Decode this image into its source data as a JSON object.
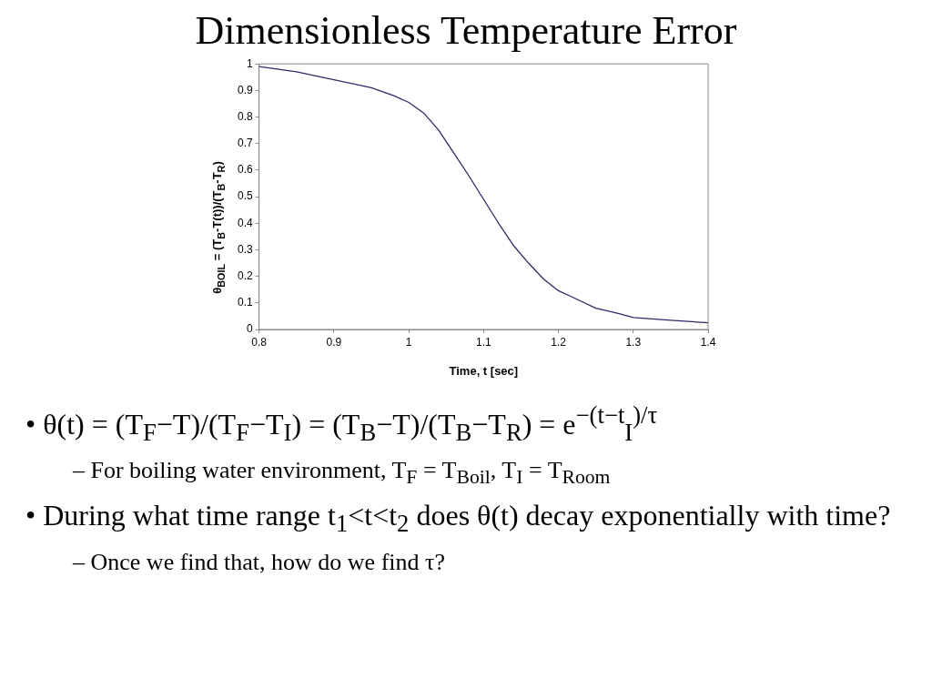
{
  "chart_data": {
    "type": "line",
    "title": "Dimensionless Temperature Error",
    "xlabel": "Time, t [sec]",
    "ylabel": "θ$_{BOIL}$ = (T$_{B}$-T(t))/(T$_{B}$-T$_{R}$)",
    "x": [
      0.8,
      0.85,
      0.9,
      0.95,
      0.98,
      1.0,
      1.02,
      1.04,
      1.06,
      1.08,
      1.1,
      1.12,
      1.14,
      1.16,
      1.18,
      1.2,
      1.22,
      1.25,
      1.28,
      1.3,
      1.35,
      1.4
    ],
    "series": [
      {
        "color": "#2b2b6b",
        "values": [
          0.99,
          0.97,
          0.94,
          0.91,
          0.88,
          0.855,
          0.815,
          0.75,
          0.665,
          0.58,
          0.49,
          0.4,
          0.316,
          0.25,
          0.19,
          0.146,
          0.12,
          0.08,
          0.06,
          0.045,
          0.035,
          0.025
        ]
      }
    ],
    "xlim": [
      0.8,
      1.4
    ],
    "xticks": [
      0.8,
      0.9,
      1,
      1.1,
      1.2,
      1.3,
      1.4
    ],
    "ylim": [
      0,
      1
    ],
    "yticks": [
      0,
      0.1,
      0.2,
      0.3,
      0.4,
      0.5,
      0.6,
      0.7,
      0.8,
      0.9,
      1
    ],
    "grid": false,
    "legend": false,
    "marker": "none",
    "line_style": "solid",
    "annotations": [
      "• θ(t) = (T$_{F}$−T)/(T$_{F}$−T$_{I}$) = (T$_{B}$−T)/(T$_{B}$−T$_{R}$) = e$^{−(t−t}$$_{I}$$^{)/τ}$",
      "– For boiling water environment, T$_{F}$ = T$_{Boil}$, T$_{I}$ = T$_{Room}$",
      "• During what time range t$_{1}$<t<t$_{2}$ does θ(t) decay exponentially with time?",
      "– Once we find that, how do we find τ?"
    ]
  }
}
